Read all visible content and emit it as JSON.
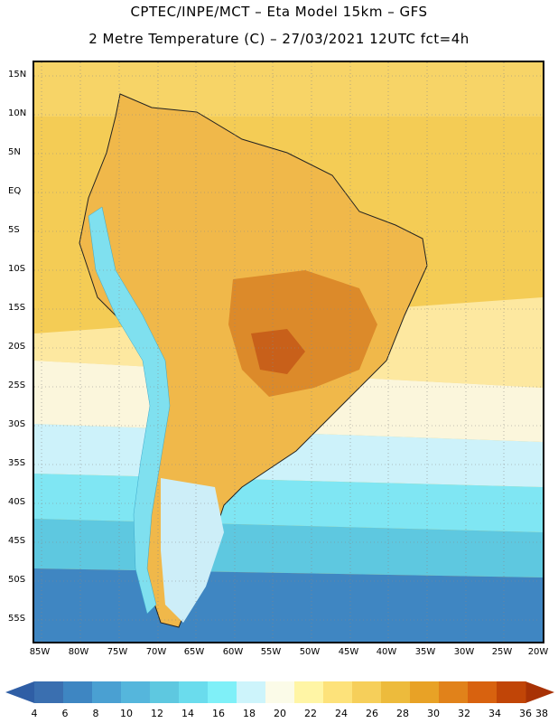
{
  "header": {
    "line1": "CPTEC/INPE/MCT –  Eta Model 15km – GFS",
    "line2": "2 Metre Temperature (C) – 27/03/2021 12UTC fct=4h"
  },
  "map": {
    "lat_labels": [
      "15N",
      "10N",
      "5N",
      "EQ",
      "5S",
      "10S",
      "15S",
      "20S",
      "25S",
      "30S",
      "35S",
      "40S",
      "45S",
      "50S",
      "55S"
    ],
    "lon_labels": [
      "85W",
      "80W",
      "75W",
      "70W",
      "65W",
      "60W",
      "55W",
      "50W",
      "45W",
      "40W",
      "35W",
      "30W",
      "25W",
      "20W"
    ]
  },
  "colorbar": {
    "labels": [
      "4",
      "6",
      "8",
      "10",
      "12",
      "14",
      "16",
      "18",
      "20",
      "22",
      "24",
      "26",
      "28",
      "30",
      "32",
      "34",
      "36",
      "38"
    ],
    "colors": [
      "#3a6fb0",
      "#3e86c2",
      "#4aa0d2",
      "#55b6dc",
      "#5ec8e0",
      "#6adced",
      "#7ff0f8",
      "#cdf4fb",
      "#fbfbe8",
      "#fff5a5",
      "#fde27a",
      "#f6cf5a",
      "#edbb3c",
      "#e8a226",
      "#e1821a",
      "#d8620f",
      "#c14507"
    ],
    "low_color": "#2f5ea5",
    "high_color": "#a83205"
  }
}
